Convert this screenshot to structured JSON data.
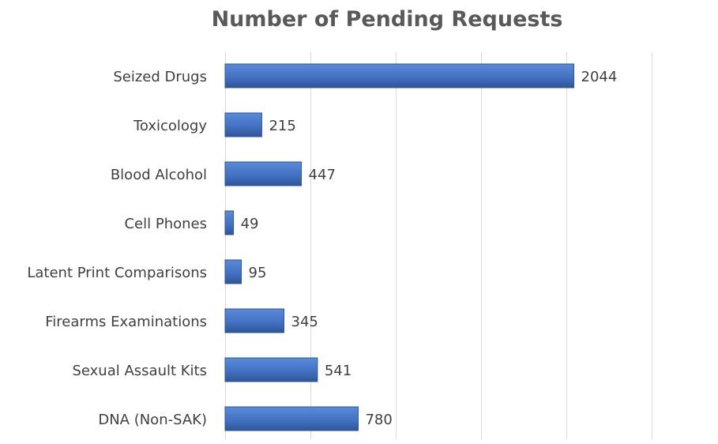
{
  "chart_data": {
    "type": "bar",
    "orientation": "horizontal",
    "title": "Number of Pending Requests",
    "categories": [
      "Seized Drugs",
      "Toxicology",
      "Blood Alcohol",
      "Cell Phones",
      "Latent Print Comparisons",
      "Firearms Examinations",
      "Sexual Assault Kits",
      "DNA (Non-SAK)"
    ],
    "values": [
      2044,
      215,
      447,
      49,
      95,
      345,
      541,
      780
    ],
    "xlim": [
      0,
      2500
    ],
    "grid": true,
    "legend": "none",
    "colors": {
      "bar": "#4472c4",
      "bar_dark": "#2f5597"
    }
  }
}
